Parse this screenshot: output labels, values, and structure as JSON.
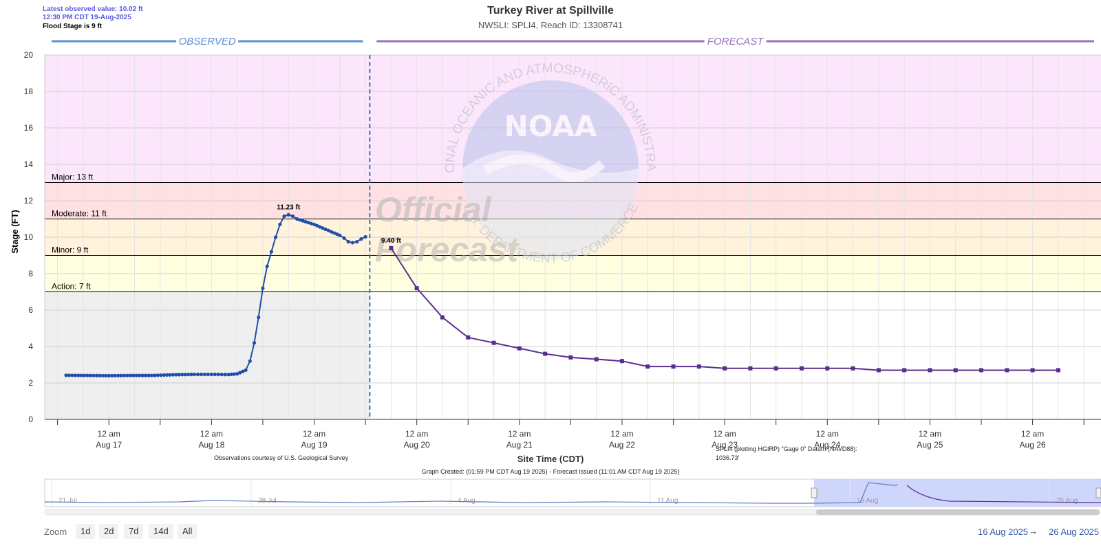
{
  "header": {
    "latest_value": "Latest observed value: 10.02 ft",
    "latest_time": "12:30 PM CDT 19-Aug-2025",
    "flood_stage": "Flood Stage is 9 ft",
    "title": "Turkey River at Spillville",
    "subtitle": "NWSLI: SPLI4, Reach ID: 13308741"
  },
  "chart_data": {
    "type": "line",
    "title": "Turkey River at Spillville",
    "ylabel": "Stage (FT)",
    "xlabel": "Site Time (CDT)",
    "ylim": [
      0,
      20
    ],
    "yticks": [
      0,
      2,
      4,
      6,
      8,
      10,
      12,
      14,
      16,
      18,
      20
    ],
    "x_unit": "hours since 12 am Aug 17 (CDT)",
    "xlim": [
      -15,
      232
    ],
    "x_tick_labels": [
      {
        "x": 0,
        "time": "12 am",
        "date": "Aug 17"
      },
      {
        "x": 24,
        "time": "12 am",
        "date": "Aug 18"
      },
      {
        "x": 48,
        "time": "12 am",
        "date": "Aug 19"
      },
      {
        "x": 72,
        "time": "12 am",
        "date": "Aug 20"
      },
      {
        "x": 96,
        "time": "12 am",
        "date": "Aug 21"
      },
      {
        "x": 120,
        "time": "12 am",
        "date": "Aug 22"
      },
      {
        "x": 144,
        "time": "12 am",
        "date": "Aug 23"
      },
      {
        "x": 168,
        "time": "12 am",
        "date": "Aug 24"
      },
      {
        "x": 192,
        "time": "12 am",
        "date": "Aug 25"
      },
      {
        "x": 216,
        "time": "12 am",
        "date": "Aug 26"
      }
    ],
    "section_labels": {
      "observed": "OBSERVED",
      "forecast": "FORECAST"
    },
    "split_x": 61,
    "flood_categories": [
      {
        "name": "Action",
        "label": "Action: 7 ft",
        "from": 7,
        "to": 9,
        "color": "#ffffe0"
      },
      {
        "name": "Minor",
        "label": "Minor: 9 ft",
        "from": 9,
        "to": 11,
        "color": "#fff3dc"
      },
      {
        "name": "Moderate",
        "label": "Moderate: 11 ft",
        "from": 11,
        "to": 13,
        "color": "#ffe1e4"
      },
      {
        "name": "Major",
        "label": "Major: 13 ft",
        "from": 13,
        "to": 20,
        "color": "#fbe6fb"
      }
    ],
    "below_action_color": "#efefef",
    "series": [
      {
        "name": "Observed",
        "color": "#1f4ea8",
        "marker": "circle",
        "peak_label": "11.23 ft",
        "points": [
          [
            -10,
            2.42
          ],
          [
            -5,
            2.41
          ],
          [
            0,
            2.4
          ],
          [
            5,
            2.41
          ],
          [
            10,
            2.41
          ],
          [
            15,
            2.45
          ],
          [
            20,
            2.47
          ],
          [
            24,
            2.47
          ],
          [
            28,
            2.46
          ],
          [
            30,
            2.5
          ],
          [
            32,
            2.7
          ],
          [
            33,
            3.2
          ],
          [
            34,
            4.2
          ],
          [
            35,
            5.6
          ],
          [
            36,
            7.2
          ],
          [
            37,
            8.4
          ],
          [
            38,
            9.2
          ],
          [
            39,
            10.0
          ],
          [
            40,
            10.7
          ],
          [
            41,
            11.15
          ],
          [
            42,
            11.23
          ],
          [
            43,
            11.15
          ],
          [
            44,
            11.0
          ],
          [
            46,
            10.85
          ],
          [
            48,
            10.7
          ],
          [
            50,
            10.5
          ],
          [
            52,
            10.3
          ],
          [
            54,
            10.1
          ],
          [
            55,
            9.95
          ],
          [
            56,
            9.75
          ],
          [
            57,
            9.7
          ],
          [
            58,
            9.75
          ],
          [
            59,
            9.9
          ],
          [
            60,
            10.02
          ]
        ]
      },
      {
        "name": "Forecast",
        "color": "#5a2d91",
        "marker": "square",
        "first_label": "9.40 ft",
        "points": [
          [
            66,
            9.4
          ],
          [
            72,
            7.2
          ],
          [
            78,
            5.6
          ],
          [
            84,
            4.5
          ],
          [
            90,
            4.2
          ],
          [
            96,
            3.9
          ],
          [
            102,
            3.6
          ],
          [
            108,
            3.4
          ],
          [
            114,
            3.3
          ],
          [
            120,
            3.2
          ],
          [
            126,
            2.9
          ],
          [
            132,
            2.9
          ],
          [
            138,
            2.9
          ],
          [
            144,
            2.8
          ],
          [
            150,
            2.8
          ],
          [
            156,
            2.8
          ],
          [
            162,
            2.8
          ],
          [
            168,
            2.8
          ],
          [
            174,
            2.8
          ],
          [
            180,
            2.7
          ],
          [
            186,
            2.7
          ],
          [
            192,
            2.7
          ],
          [
            198,
            2.7
          ],
          [
            204,
            2.7
          ],
          [
            210,
            2.7
          ],
          [
            216,
            2.7
          ],
          [
            222,
            2.7
          ]
        ]
      }
    ]
  },
  "notes": {
    "courtesy": "Observations courtesy of U.S. Geological Survey",
    "datum_line1": "SPLI4 (plotting HGIRP) \"Gage 0\" Datum (NAVD88):",
    "datum_line2": "1036.73'",
    "graph_created": "Graph Created: (01:59 PM CDT Aug 19 2025) - Forecast Issued (11:01 AM CDT Aug 19 2025)"
  },
  "watermark": {
    "ring_text": "NATIONAL OCEANIC AND ATMOSPHERIC ADMINISTRATION",
    "ring_text_bottom": "U.S. DEPARTMENT OF COMMERCE",
    "logo_text": "NOAA",
    "official_text": "Official",
    "forecast_text": "Forecast"
  },
  "navigator": {
    "date_labels": [
      "21 Jul",
      "28 Jul",
      "4 Aug",
      "11 Aug",
      "18 Aug",
      "25 Aug"
    ],
    "series_color": "#5a7fc5",
    "selection_color": "#c9d3fb"
  },
  "zoom": {
    "label": "Zoom",
    "buttons": [
      "1d",
      "2d",
      "7d",
      "14d",
      "All"
    ]
  },
  "range": {
    "from": "16 Aug 2025",
    "arrow": "→",
    "to": "26 Aug 2025"
  }
}
